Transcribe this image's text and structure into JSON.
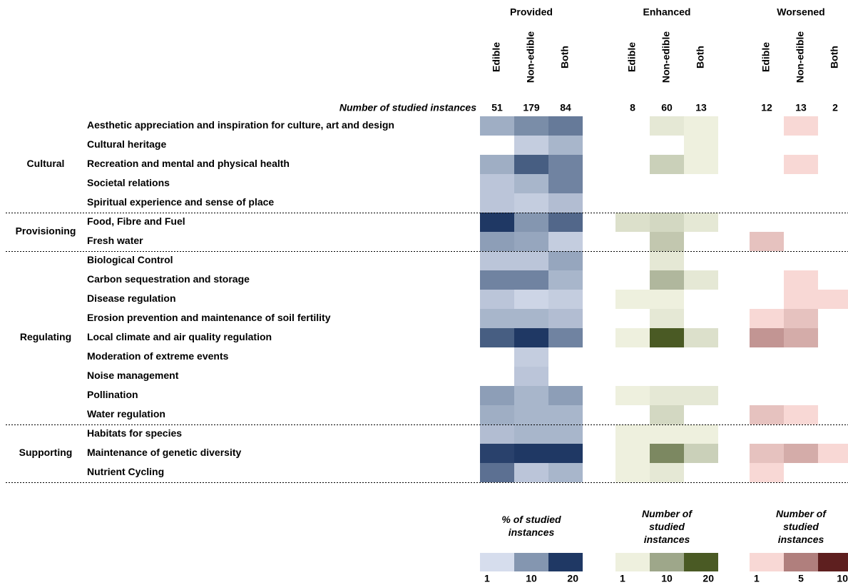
{
  "chart_data": {
    "type": "heatmap",
    "instances_label": "Number of studied instances",
    "sections": [
      {
        "name": "Cultural",
        "rows": [
          "Aesthetic appreciation and inspiration for culture, art and design",
          "Cultural heritage",
          "Recreation and mental and physical health",
          "Societal relations",
          "Spiritual experience and sense of place"
        ]
      },
      {
        "name": "Provisioning",
        "rows": [
          "Food, Fibre and Fuel",
          "Fresh water"
        ]
      },
      {
        "name": "Regulating",
        "rows": [
          "Biological Control",
          "Carbon sequestration and storage",
          "Disease regulation",
          "Erosion prevention and maintenance of soil fertility",
          "Local climate and air quality regulation",
          "Moderation of extreme events",
          "Noise management",
          "Pollination",
          "Water regulation"
        ]
      },
      {
        "name": "Supporting",
        "rows": [
          "Habitats for species",
          "Maintenance of genetic diversity",
          "Nutrient Cycling"
        ]
      }
    ],
    "groups": [
      {
        "name": "Provided",
        "columns": [
          "Edible",
          "Non-edible",
          "Both"
        ],
        "instances": [
          51,
          179,
          84
        ],
        "legend_title": "% of studied instances",
        "scale_ticks": [
          1,
          10,
          20
        ],
        "scale_colors": [
          "#d6dded",
          "#8496b0",
          "#1f3864"
        ],
        "values": [
          [
            7,
            11,
            13
          ],
          [
            null,
            3,
            6
          ],
          [
            7,
            16,
            12
          ],
          [
            4,
            6,
            12
          ],
          [
            4,
            3,
            5
          ],
          [
            20,
            10,
            15
          ],
          [
            9,
            8,
            3
          ],
          [
            4,
            4,
            8
          ],
          [
            12,
            12,
            6
          ],
          [
            4,
            2,
            3
          ],
          [
            6,
            6,
            5
          ],
          [
            16,
            20,
            12
          ],
          [
            null,
            3,
            null
          ],
          [
            null,
            4,
            null
          ],
          [
            9,
            6,
            9
          ],
          [
            7,
            6,
            6
          ],
          [
            5,
            6,
            6
          ],
          [
            19,
            20,
            20
          ],
          [
            14,
            4,
            6
          ]
        ]
      },
      {
        "name": "Enhanced",
        "columns": [
          "Edible",
          "Non-edible",
          "Both"
        ],
        "instances": [
          8,
          60,
          13
        ],
        "legend_title": "Number of studied instances",
        "scale_ticks": [
          1,
          10,
          20
        ],
        "scale_colors": [
          "#eef0de",
          "#9ea78a",
          "#4a5a24"
        ],
        "values": [
          [
            null,
            2,
            1
          ],
          [
            null,
            null,
            1
          ],
          [
            null,
            5,
            1
          ],
          [
            null,
            null,
            null
          ],
          [
            null,
            null,
            null
          ],
          [
            3,
            4,
            2
          ],
          [
            null,
            6,
            null
          ],
          [
            null,
            2,
            null
          ],
          [
            null,
            8,
            2
          ],
          [
            1,
            1,
            null
          ],
          [
            null,
            2,
            null
          ],
          [
            1,
            20,
            3
          ],
          [
            null,
            null,
            null
          ],
          [
            null,
            null,
            null
          ],
          [
            1,
            2,
            2
          ],
          [
            null,
            4,
            null
          ],
          [
            1,
            1,
            1
          ],
          [
            1,
            14,
            5
          ],
          [
            1,
            2,
            null
          ]
        ]
      },
      {
        "name": "Worsened",
        "columns": [
          "Edible",
          "Non-edible",
          "Both"
        ],
        "instances": [
          12,
          13,
          2
        ],
        "legend_title": "Number of studied instances",
        "scale_ticks": [
          1,
          5,
          10
        ],
        "scale_colors": [
          "#f8d8d5",
          "#b07f7d",
          "#5e1f1f"
        ],
        "values": [
          [
            null,
            1,
            null
          ],
          [
            null,
            null,
            null
          ],
          [
            null,
            1,
            null
          ],
          [
            null,
            null,
            null
          ],
          [
            null,
            null,
            null
          ],
          [
            null,
            null,
            null
          ],
          [
            2,
            null,
            null
          ],
          [
            null,
            null,
            null
          ],
          [
            null,
            1,
            null
          ],
          [
            null,
            1,
            1
          ],
          [
            1,
            2,
            null
          ],
          [
            4,
            3,
            null
          ],
          [
            null,
            null,
            null
          ],
          [
            null,
            null,
            null
          ],
          [
            null,
            null,
            null
          ],
          [
            2,
            1,
            null
          ],
          [
            null,
            null,
            null
          ],
          [
            2,
            3,
            1
          ],
          [
            1,
            null,
            null
          ]
        ]
      }
    ]
  }
}
